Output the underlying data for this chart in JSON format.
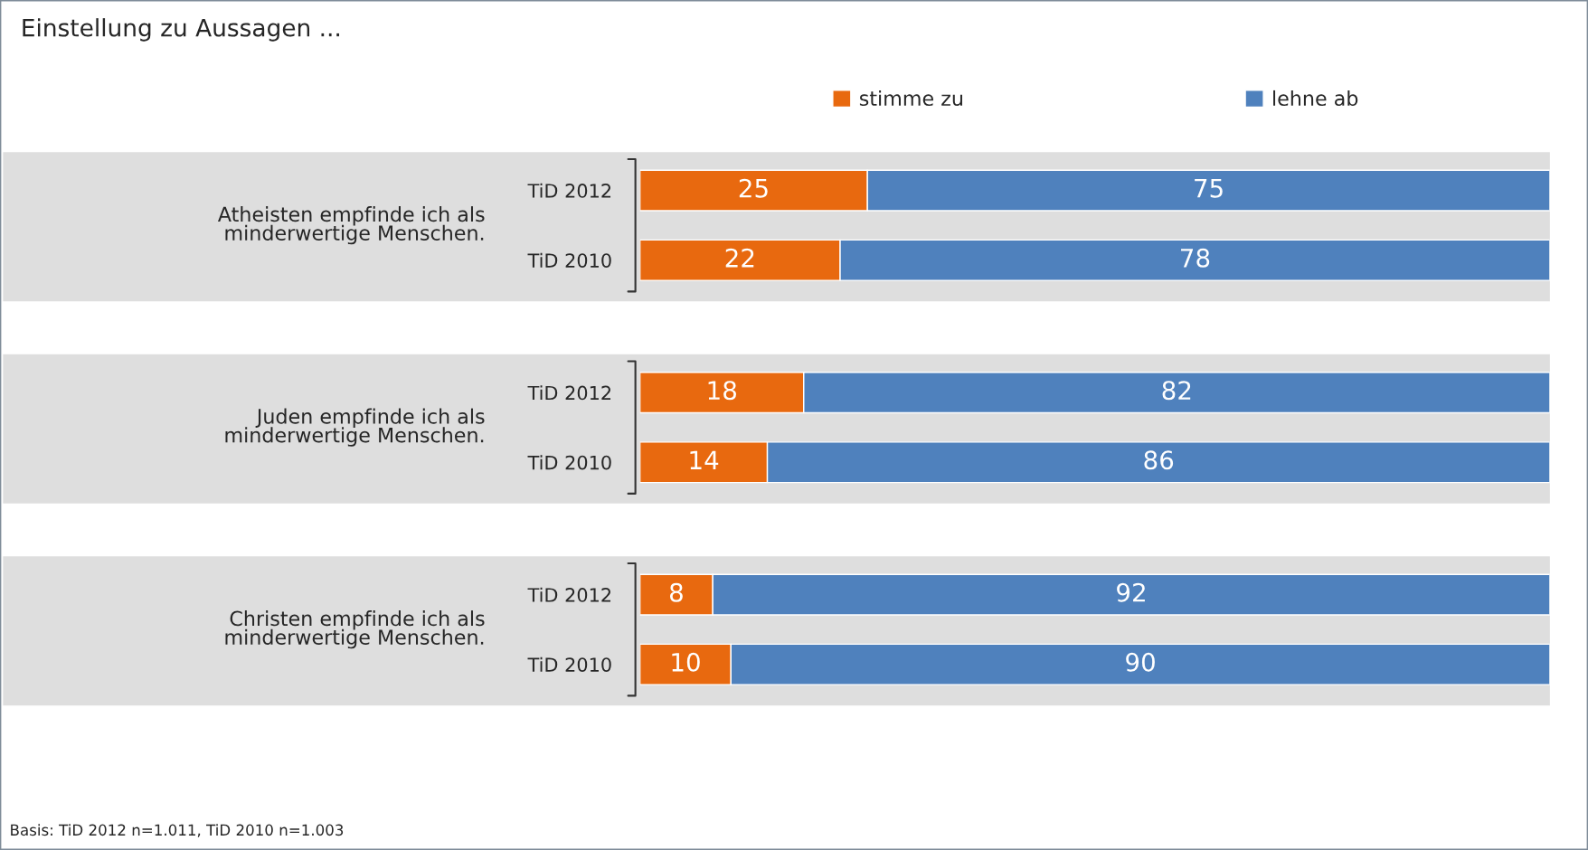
{
  "chart_data": {
    "type": "bar",
    "orientation": "horizontal",
    "stacked": true,
    "title": "Einstellung zu Aussagen ...",
    "categories": [
      "TiD 2012",
      "TiD 2010",
      "TiD 2012",
      "TiD 2010",
      "TiD 2012",
      "TiD 2010"
    ],
    "series": [
      {
        "name": "stimme zu",
        "color": "#e8690f",
        "values": [
          25,
          22,
          18,
          14,
          8,
          10
        ]
      },
      {
        "name": "lehne ab",
        "color": "#4f81bd",
        "values": [
          75,
          78,
          82,
          86,
          92,
          90
        ]
      }
    ],
    "data_labels": true,
    "legend": "top",
    "tick_labels": "y",
    "annotations": [
      "Atheisten empfinde ich als\nminderwertige Menschen.",
      "Juden empfinde ich als\nminderwertige Menschen.",
      "Christen empfinde ich als\nminderwertige Menschen.",
      "Basis: TiD 2012 n=1.011, TiD 2010 n=1.003"
    ]
  }
}
